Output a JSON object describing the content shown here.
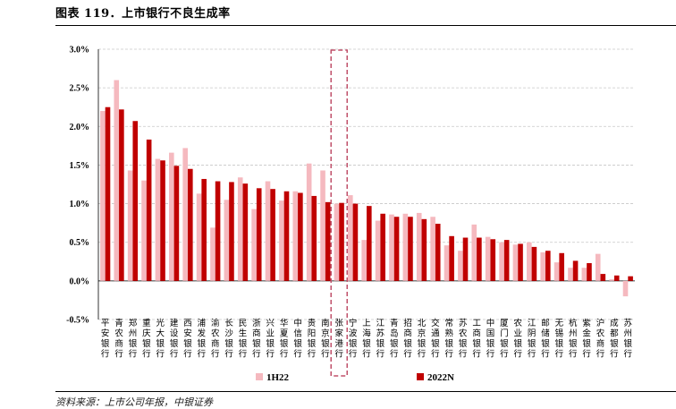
{
  "header": {
    "title": "图表 119．上市银行不良生成率"
  },
  "footer": {
    "source": "资料来源：上市公司年报，中银证券"
  },
  "colors": {
    "s1": "#f5b9bf",
    "s2": "#c00000",
    "highlight": "#c0506a"
  },
  "chart_data": {
    "type": "bar",
    "ylim": [
      -0.5,
      3.0
    ],
    "yticks": [
      "3.0%",
      "2.5%",
      "2.0%",
      "1.5%",
      "1.0%",
      "0.5%",
      "0.0%",
      "-0.5%"
    ],
    "ytick_values": [
      3.0,
      2.5,
      2.0,
      1.5,
      1.0,
      0.5,
      0.0,
      -0.5
    ],
    "grid": true,
    "legend_position": "bottom",
    "highlight_category": "张家港行",
    "categories": [
      "平安银行",
      "青农商行",
      "郑州银行",
      "重庆银行",
      "光大银行",
      "建设银行",
      "西安银行",
      "浦发银行",
      "渝农商行",
      "长沙银行",
      "民生银行",
      "浙商银行",
      "兴业银行",
      "华夏银行",
      "中信银行",
      "贵阳银行",
      "南京银行",
      "张家港行",
      "宁波银行",
      "上海银行",
      "江苏银行",
      "青岛银行",
      "招商银行",
      "北京银行",
      "交通银行",
      "常熟银行",
      "苏农银行",
      "工商银行",
      "中国银行",
      "厦门银行",
      "农业银行",
      "江阴银行",
      "邮储银行",
      "无锡银行",
      "杭州银行",
      "紫金银行",
      "沪农商行",
      "成都银行",
      "苏州银行"
    ],
    "series": [
      {
        "name": "1H22",
        "values": [
          2.2,
          2.6,
          1.43,
          1.3,
          1.58,
          1.66,
          1.72,
          1.13,
          0.69,
          1.05,
          1.34,
          0.93,
          1.29,
          1.04,
          1.16,
          1.52,
          1.43,
          1.0,
          1.11,
          0.53,
          0.78,
          0.86,
          0.87,
          0.88,
          0.83,
          0.46,
          0.39,
          0.73,
          0.57,
          0.5,
          0.47,
          0.5,
          0.37,
          0.24,
          0.17,
          0.17,
          0.35,
          0.02,
          -0.2
        ]
      },
      {
        "name": "2022N",
        "values": [
          2.25,
          2.22,
          2.07,
          1.83,
          1.56,
          1.49,
          1.45,
          1.32,
          1.29,
          1.28,
          1.26,
          1.2,
          1.19,
          1.16,
          1.14,
          1.1,
          1.02,
          1.01,
          1.0,
          0.97,
          0.87,
          0.83,
          0.83,
          0.8,
          0.74,
          0.58,
          0.56,
          0.56,
          0.54,
          0.53,
          0.48,
          0.44,
          0.39,
          0.36,
          0.26,
          0.23,
          0.09,
          0.07,
          0.06
        ]
      }
    ]
  }
}
